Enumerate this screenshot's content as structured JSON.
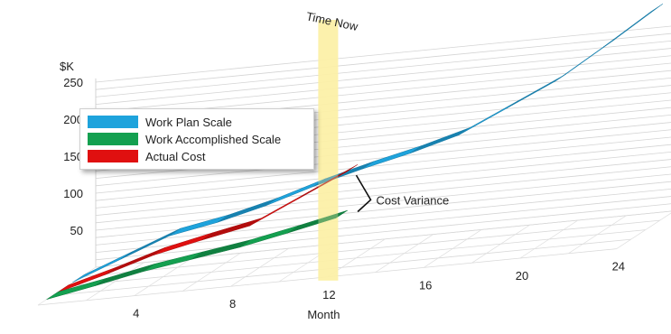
{
  "chart_data": {
    "type": "area",
    "title": "",
    "xlabel": "Month",
    "ylabel": "$K",
    "x_ticks": [
      4,
      8,
      12,
      16,
      20,
      24
    ],
    "y_ticks": [
      50,
      100,
      150,
      200,
      250
    ],
    "xlim": [
      0,
      24
    ],
    "ylim": [
      0,
      265
    ],
    "grid": true,
    "legend_position": "upper-left",
    "series": [
      {
        "name": "Work Plan Scale",
        "color": "#1ea3dc",
        "x": [
          0,
          2,
          4,
          6,
          8,
          10,
          12,
          14,
          16,
          18,
          20,
          22,
          24
        ],
        "values": [
          0,
          25,
          50,
          62,
          78,
          98,
          115,
          130,
          148,
          178,
          208,
          248,
          290
        ]
      },
      {
        "name": "Work Accomplished Scale",
        "color": "#14a050",
        "x": [
          0,
          2,
          4,
          6,
          8,
          10,
          12
        ],
        "values": [
          0,
          12,
          25,
          35,
          45,
          58,
          72
        ]
      },
      {
        "name": "Actual Cost",
        "color": "#e01010",
        "x": [
          0,
          2,
          4,
          6,
          8,
          10,
          12
        ],
        "values": [
          0,
          18,
          38,
          52,
          65,
          95,
          125
        ]
      }
    ],
    "annotations": [
      {
        "text": "Time Now",
        "x": 12
      },
      {
        "text": "Cost Variance",
        "x": 12
      }
    ]
  }
}
